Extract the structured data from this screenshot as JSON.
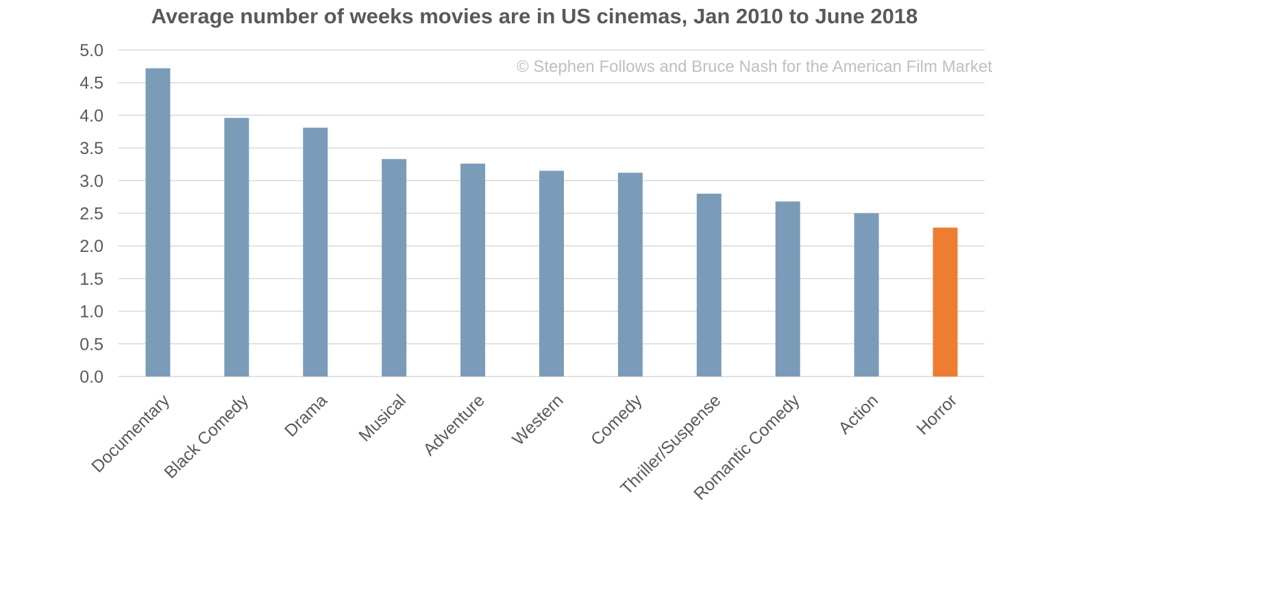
{
  "chart_data": {
    "type": "bar",
    "title": "Average number of weeks movies are in US cinemas, Jan 2010 to June 2018",
    "watermark": "© Stephen Follows and Bruce Nash for the American Film Market",
    "categories": [
      "Documentary",
      "Black Comedy",
      "Drama",
      "Musical",
      "Adventure",
      "Western",
      "Comedy",
      "Thriller/Suspense",
      "Romantic Comedy",
      "Action",
      "Horror"
    ],
    "values": [
      4.72,
      3.96,
      3.81,
      3.33,
      3.26,
      3.15,
      3.12,
      2.8,
      2.68,
      2.5,
      2.28
    ],
    "highlight_category": "Horror",
    "ylim": [
      0,
      5
    ],
    "yticks": [
      "0.0",
      "0.5",
      "1.0",
      "1.5",
      "2.0",
      "2.5",
      "3.0",
      "3.5",
      "4.0",
      "4.5",
      "5.0"
    ],
    "grid": true,
    "xlabel": "",
    "ylabel": "",
    "colors": {
      "bar": "#7a9cb8",
      "highlight": "#ed7d31"
    }
  }
}
